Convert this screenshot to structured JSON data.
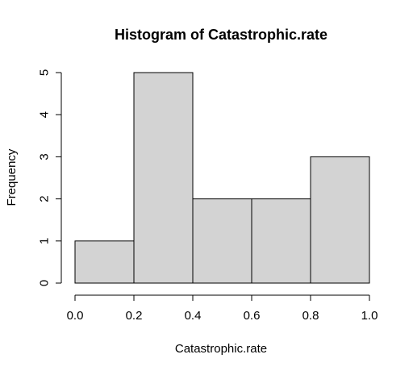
{
  "chart_data": {
    "type": "bar",
    "title": "Histogram of Catastrophic.rate",
    "xlabel": "Catastrophic.rate",
    "ylabel": "Frequency",
    "bins": [
      {
        "start": 0.0,
        "end": 0.2,
        "count": 1
      },
      {
        "start": 0.2,
        "end": 0.4,
        "count": 5
      },
      {
        "start": 0.4,
        "end": 0.6,
        "count": 2
      },
      {
        "start": 0.6,
        "end": 0.8,
        "count": 2
      },
      {
        "start": 0.8,
        "end": 1.0,
        "count": 3
      }
    ],
    "xlim": [
      0.0,
      1.0
    ],
    "ylim": [
      0,
      5
    ],
    "x_ticks": [
      "0.0",
      "0.2",
      "0.4",
      "0.6",
      "0.8",
      "1.0"
    ],
    "y_ticks": [
      "0",
      "1",
      "2",
      "3",
      "4",
      "5"
    ],
    "bar_color": "#d3d3d3",
    "grid": false
  }
}
